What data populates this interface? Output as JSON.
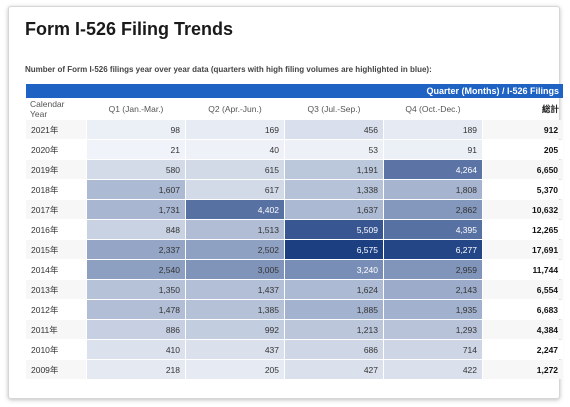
{
  "header": {
    "title": "Form I-526 Filing Trends",
    "subtitle": "Number of Form I-526 filings year over year data (quarters with high filing volumes are highlighted in blue):",
    "banner": "Quarter (Months) / I-526 Filings"
  },
  "colors": {
    "banner": "#1e63c3",
    "heat_low": "#f2f5fa",
    "heat_high": "#1c3f82"
  },
  "chart_data": {
    "type": "heatmap",
    "title": "Form I-526 Filing Trends",
    "row_header": "Calendar Year",
    "columns": [
      "Q1 (Jan.-Mar.)",
      "Q2 (Apr.-Jun.)",
      "Q3 (Jul.-Sep.)",
      "Q4 (Oct.-Dec.)"
    ],
    "total_header": "総計",
    "rows": [
      {
        "year": "2021年",
        "values": [
          98,
          169,
          456,
          189
        ],
        "value_labels": [
          "98",
          "169",
          "456",
          "189"
        ],
        "total": "912"
      },
      {
        "year": "2020年",
        "values": [
          21,
          40,
          53,
          91
        ],
        "value_labels": [
          "21",
          "40",
          "53",
          "91"
        ],
        "total": "205"
      },
      {
        "year": "2019年",
        "values": [
          580,
          615,
          1191,
          4264
        ],
        "value_labels": [
          "580",
          "615",
          "1,191",
          "4,264"
        ],
        "total": "6,650"
      },
      {
        "year": "2018年",
        "values": [
          1607,
          617,
          1338,
          1808
        ],
        "value_labels": [
          "1,607",
          "617",
          "1,338",
          "1,808"
        ],
        "total": "5,370"
      },
      {
        "year": "2017年",
        "values": [
          1731,
          4402,
          1637,
          2862
        ],
        "value_labels": [
          "1,731",
          "4,402",
          "1,637",
          "2,862"
        ],
        "total": "10,632"
      },
      {
        "year": "2016年",
        "values": [
          848,
          1513,
          5509,
          4395
        ],
        "value_labels": [
          "848",
          "1,513",
          "5,509",
          "4,395"
        ],
        "total": "12,265"
      },
      {
        "year": "2015年",
        "values": [
          2337,
          2502,
          6575,
          6277
        ],
        "value_labels": [
          "2,337",
          "2,502",
          "6,575",
          "6,277"
        ],
        "total": "17,691"
      },
      {
        "year": "2014年",
        "values": [
          2540,
          3005,
          3240,
          2959
        ],
        "value_labels": [
          "2,540",
          "3,005",
          "3,240",
          "2,959"
        ],
        "total": "11,744"
      },
      {
        "year": "2013年",
        "values": [
          1350,
          1437,
          1624,
          2143
        ],
        "value_labels": [
          "1,350",
          "1,437",
          "1,624",
          "2,143"
        ],
        "total": "6,554"
      },
      {
        "year": "2012年",
        "values": [
          1478,
          1385,
          1885,
          1935
        ],
        "value_labels": [
          "1,478",
          "1,385",
          "1,885",
          "1,935"
        ],
        "total": "6,683"
      },
      {
        "year": "2011年",
        "values": [
          886,
          992,
          1213,
          1293
        ],
        "value_labels": [
          "886",
          "992",
          "1,213",
          "1,293"
        ],
        "total": "4,384"
      },
      {
        "year": "2010年",
        "values": [
          410,
          437,
          686,
          714
        ],
        "value_labels": [
          "410",
          "437",
          "686",
          "714"
        ],
        "total": "2,247"
      },
      {
        "year": "2009年",
        "values": [
          218,
          205,
          427,
          422
        ],
        "value_labels": [
          "218",
          "205",
          "427",
          "422"
        ],
        "total": "1,272"
      }
    ]
  }
}
